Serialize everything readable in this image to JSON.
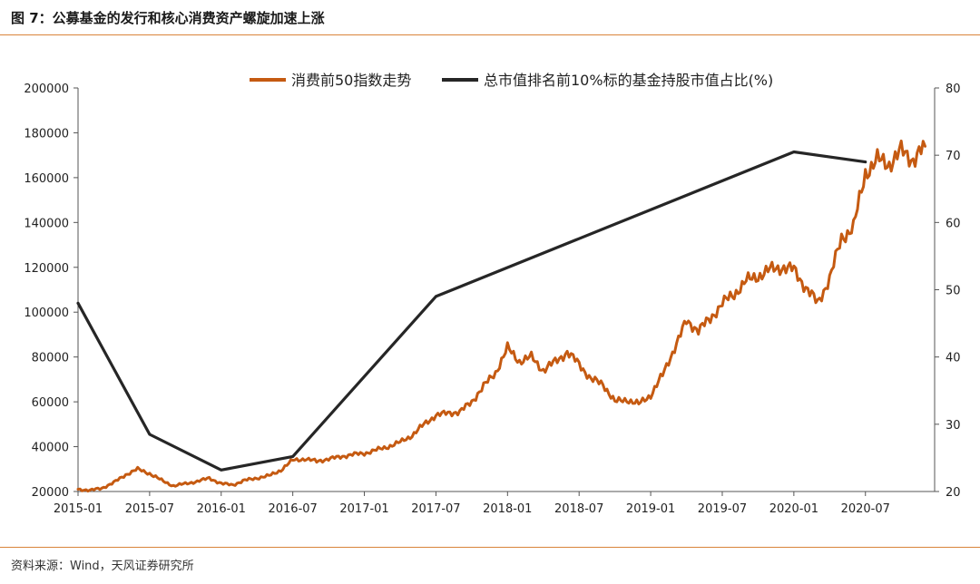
{
  "header": {
    "title": "图 7：公募基金的发行和核心消费资产螺旋加速上涨"
  },
  "footer": {
    "source": "资料来源：Wind，天风证券研究所"
  },
  "colors": {
    "accent": "#d9843a",
    "series_index": "#c55a11",
    "series_share": "#262626"
  },
  "chart_data": {
    "type": "line",
    "x_tick_labels": [
      "2015-01",
      "2015-07",
      "2016-01",
      "2016-07",
      "2017-01",
      "2017-07",
      "2018-01",
      "2018-07",
      "2019-01",
      "2019-07",
      "2020-01",
      "2020-07"
    ],
    "x_range": [
      "2015-01",
      "2020-12"
    ],
    "y_left": {
      "range": [
        20000,
        200000
      ],
      "ticks": [
        20000,
        40000,
        60000,
        80000,
        100000,
        120000,
        140000,
        160000,
        180000,
        200000
      ]
    },
    "y_right": {
      "range": [
        20,
        80
      ],
      "ticks": [
        20,
        30,
        40,
        50,
        60,
        70,
        80
      ]
    },
    "grid": false,
    "legend_position": "top",
    "series": [
      {
        "name": "消费前50指数走势",
        "axis": "left",
        "points": [
          [
            "2015-01",
            21000
          ],
          [
            "2015-02",
            20500
          ],
          [
            "2015-03",
            21500
          ],
          [
            "2015-04",
            24000
          ],
          [
            "2015-05",
            27500
          ],
          [
            "2015-06",
            30000
          ],
          [
            "2015-07",
            28000
          ],
          [
            "2015-08",
            25000
          ],
          [
            "2015-09",
            22500
          ],
          [
            "2015-10",
            23500
          ],
          [
            "2015-11",
            24500
          ],
          [
            "2015-12",
            26000
          ],
          [
            "2016-01",
            23500
          ],
          [
            "2016-02",
            23000
          ],
          [
            "2016-03",
            25000
          ],
          [
            "2016-04",
            26000
          ],
          [
            "2016-05",
            27000
          ],
          [
            "2016-06",
            29500
          ],
          [
            "2016-07",
            34000
          ],
          [
            "2016-08",
            34500
          ],
          [
            "2016-09",
            33500
          ],
          [
            "2016-10",
            34500
          ],
          [
            "2016-11",
            35500
          ],
          [
            "2016-12",
            36500
          ],
          [
            "2017-01",
            37000
          ],
          [
            "2017-02",
            38500
          ],
          [
            "2017-03",
            40000
          ],
          [
            "2017-04",
            42000
          ],
          [
            "2017-05",
            45000
          ],
          [
            "2017-06",
            50000
          ],
          [
            "2017-07",
            54000
          ],
          [
            "2017-08",
            55000
          ],
          [
            "2017-09",
            55500
          ],
          [
            "2017-10",
            60000
          ],
          [
            "2017-11",
            67000
          ],
          [
            "2017-12",
            73000
          ],
          [
            "2018-01",
            84000
          ],
          [
            "2018-02",
            78000
          ],
          [
            "2018-03",
            80000
          ],
          [
            "2018-04",
            74000
          ],
          [
            "2018-05",
            78000
          ],
          [
            "2018-06",
            82000
          ],
          [
            "2018-07",
            77000
          ],
          [
            "2018-08",
            70000
          ],
          [
            "2018-09",
            68000
          ],
          [
            "2018-10",
            60000
          ],
          [
            "2018-11",
            61000
          ],
          [
            "2018-12",
            59000
          ],
          [
            "2019-01",
            63000
          ],
          [
            "2019-02",
            72000
          ],
          [
            "2019-03",
            84000
          ],
          [
            "2019-04",
            96000
          ],
          [
            "2019-05",
            92000
          ],
          [
            "2019-06",
            97000
          ],
          [
            "2019-07",
            104000
          ],
          [
            "2019-08",
            108000
          ],
          [
            "2019-09",
            114000
          ],
          [
            "2019-10",
            116000
          ],
          [
            "2019-11",
            119000
          ],
          [
            "2019-12",
            120000
          ],
          [
            "2020-01",
            119000
          ],
          [
            "2020-02",
            111000
          ],
          [
            "2020-03",
            104000
          ],
          [
            "2020-04",
            115000
          ],
          [
            "2020-05",
            133000
          ],
          [
            "2020-06",
            138000
          ],
          [
            "2020-07",
            162000
          ],
          [
            "2020-08",
            168000
          ],
          [
            "2020-09",
            166000
          ],
          [
            "2020-10",
            172000
          ],
          [
            "2020-11",
            168000
          ],
          [
            "2020-12",
            174000
          ]
        ]
      },
      {
        "name": "总市值排名前10%标的基金持股市值占比(%)",
        "axis": "right",
        "points": [
          [
            "2015-01",
            48
          ],
          [
            "2015-07",
            28.5
          ],
          [
            "2016-01",
            23.2
          ],
          [
            "2016-07",
            25.2
          ],
          [
            "2017-07",
            49
          ],
          [
            "2020-01",
            70.5
          ],
          [
            "2020-07",
            69
          ]
        ]
      }
    ]
  }
}
